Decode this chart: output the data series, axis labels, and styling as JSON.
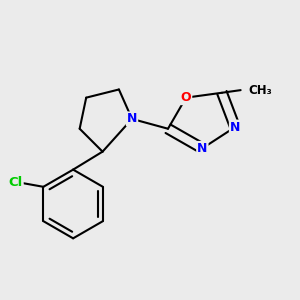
{
  "background_color": "#ebebeb",
  "bond_color": "#000000",
  "bond_width": 1.5,
  "atom_colors": {
    "N": "#0000ff",
    "O": "#ff0000",
    "Cl": "#00cc00",
    "C": "#000000"
  },
  "font_size_atoms": 9,
  "font_size_methyl": 8.5
}
